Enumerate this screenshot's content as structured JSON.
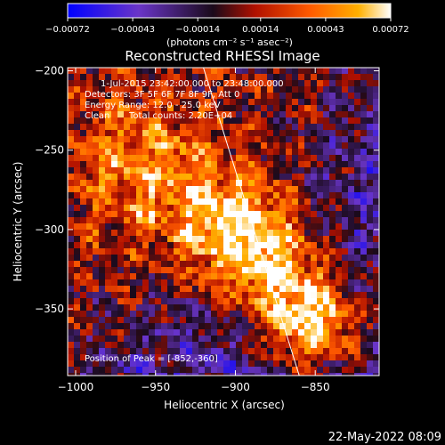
{
  "chart_data": {
    "type": "heatmap",
    "title": "Reconstructed RHESSI Image",
    "xlabel": "Heliocentric X (arcsec)",
    "ylabel": "Heliocentric Y (arcsec)",
    "xlim": [
      -1005,
      -810
    ],
    "ylim": [
      -392,
      -198
    ],
    "x_ticks": [
      -1000,
      -950,
      -900,
      -850
    ],
    "x_tick_labels": [
      "−1000",
      "−950",
      "−900",
      "−850"
    ],
    "y_ticks": [
      -200,
      -250,
      -300,
      -350
    ],
    "y_tick_labels": [
      "−200",
      "−250",
      "−300",
      "−350"
    ],
    "colorbar": {
      "range": [
        -0.00072,
        0.00072
      ],
      "ticks": [
        -0.00072,
        -0.00043,
        -0.00014,
        0.00014,
        0.00043,
        0.00072
      ],
      "tick_labels": [
        "−0.00072",
        "−0.00043",
        "−0.00014",
        "0.00014",
        "0.00043",
        "0.00072"
      ],
      "units": "(photons cm⁻² s⁻¹ asec⁻²)",
      "colors": [
        "#0000ff",
        "#6a35c8",
        "#1a0a1a",
        "#b01000",
        "#ff5a00",
        "#ffb000",
        "#ffffff"
      ]
    },
    "peak": {
      "x": -852,
      "y": -360
    },
    "limb_line": {
      "x1": -920,
      "y1": -198,
      "x2": -860,
      "y2": -392
    },
    "annotations": {
      "time": "1-Jul-2015 23:42:00.000 to 23:48:00.000",
      "detectors": "Detectors: 3F 5F 6F 7F 8F 9F, Att 0",
      "energy": "Energy Range: 12.0 - 25.0 keV",
      "clean": "Clean",
      "counts": "Total counts: 2.20E+04",
      "peak": "Position of Peak = [-852,-360]"
    }
  },
  "footer": {
    "timestamp": "22-May-2022 08:09"
  },
  "colors": {
    "background": "#000000",
    "axes": "#ffffff",
    "limb_line": "#ffffff"
  }
}
